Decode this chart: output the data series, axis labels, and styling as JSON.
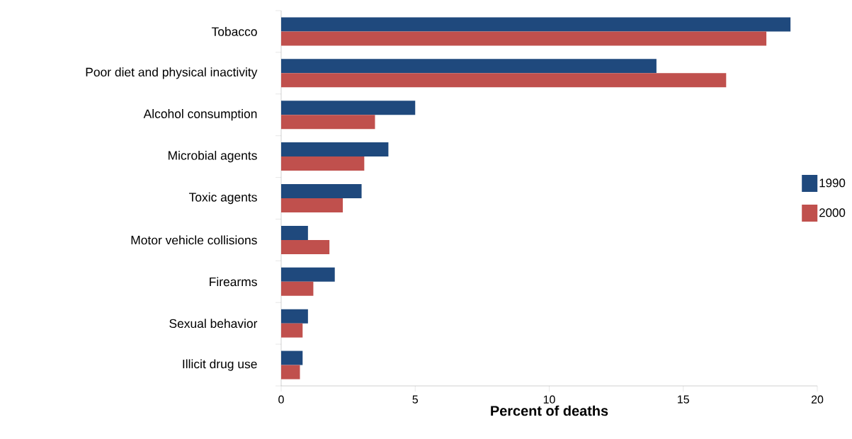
{
  "chart_data": {
    "type": "bar",
    "orientation": "horizontal",
    "xlabel": "Percent of deaths",
    "categories": [
      "Tobacco",
      "Poor diet and physical inactivity",
      "Alcohol consumption",
      "Microbial agents",
      "Toxic agents",
      "Motor vehicle collisions",
      "Firearms",
      "Sexual behavior",
      "Illicit drug use"
    ],
    "series": [
      {
        "name": "1990",
        "color": "#1f497d",
        "values": [
          19,
          14,
          5,
          4,
          3,
          1,
          2,
          1,
          0.8
        ]
      },
      {
        "name": "2000",
        "color": "#c0504d",
        "values": [
          18.1,
          16.6,
          3.5,
          3.1,
          2.3,
          1.8,
          1.2,
          0.8,
          0.7
        ]
      }
    ],
    "xlim": [
      0,
      20
    ],
    "xticks": [
      0,
      5,
      10,
      15,
      20
    ],
    "legend": "right"
  }
}
